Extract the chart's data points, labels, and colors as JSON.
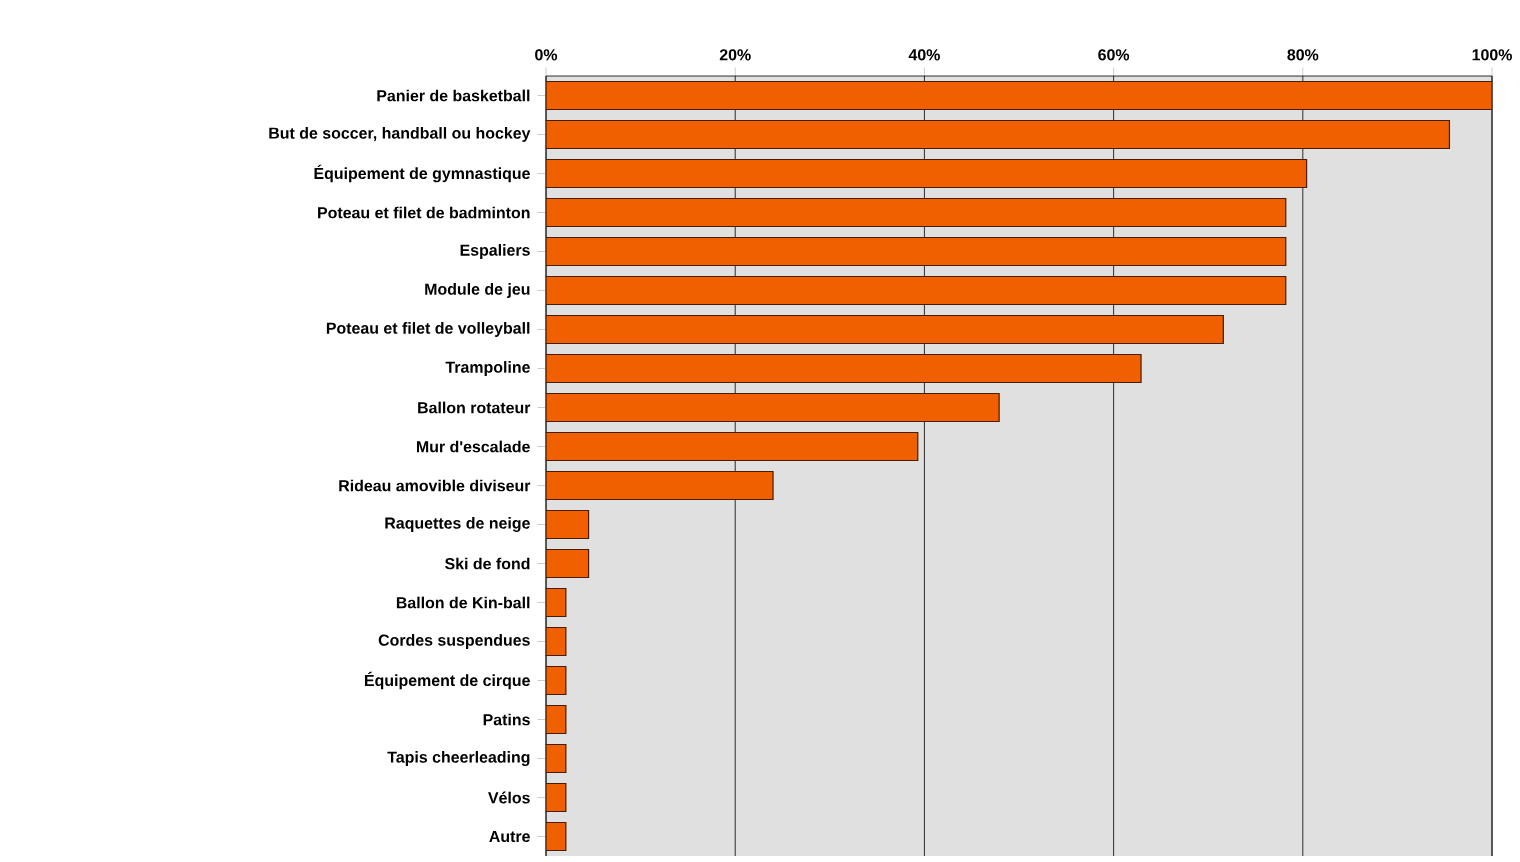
{
  "chart_data": {
    "type": "bar",
    "orientation": "horizontal",
    "categories": [
      "Panier de basketball",
      "But de soccer, handball ou hockey",
      "Équipement de gymnastique",
      "Poteau et filet de badminton",
      "Espaliers",
      "Module de jeu",
      "Poteau et filet de volleyball",
      "Trampoline",
      "Ballon rotateur",
      "Mur d'escalade",
      "Rideau amovible diviseur",
      "Raquettes de neige",
      "Ski de fond",
      "Ballon de Kin-ball",
      "Cordes suspendues",
      "Équipement de cirque",
      "Patins",
      "Tapis cheerleading",
      "Vélos",
      "Autre"
    ],
    "values": [
      100,
      95.5,
      80.4,
      78.2,
      78.2,
      78.2,
      71.6,
      62.9,
      47.9,
      39.3,
      24.0,
      4.5,
      4.5,
      2.1,
      2.1,
      2.1,
      2.1,
      2.1,
      2.1,
      2.1
    ],
    "color": "#f06000",
    "xlim": [
      0,
      100
    ],
    "xticks": [
      {
        "value": 0,
        "label": "0%"
      },
      {
        "value": 20,
        "label": "20%"
      },
      {
        "value": 40,
        "label": "40%"
      },
      {
        "value": 60,
        "label": "60%"
      },
      {
        "value": 80,
        "label": "80%"
      },
      {
        "value": 100,
        "label": "100%"
      }
    ],
    "grid": "x"
  }
}
